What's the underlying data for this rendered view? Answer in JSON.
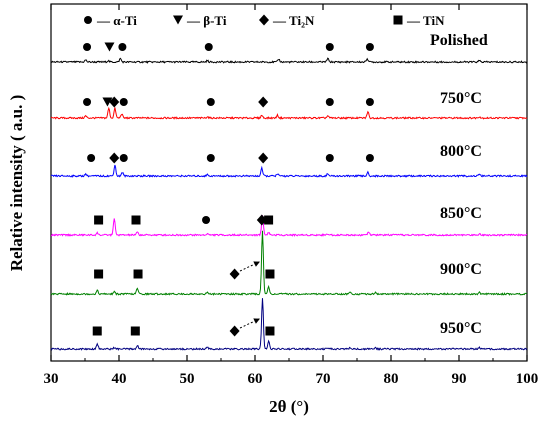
{
  "chart_data": {
    "type": "line",
    "xlabel": "2θ (°)",
    "ylabel": "Relative intensity ( a.u. )",
    "xlim": [
      30,
      100
    ],
    "x_ticks": [
      30,
      40,
      50,
      60,
      70,
      80,
      90,
      100
    ],
    "y_ticks_shown": false,
    "legend": [
      {
        "symbol": "circle",
        "label": "— α-Ti"
      },
      {
        "symbol": "triangle-down",
        "label": "— β-Ti"
      },
      {
        "symbol": "diamond",
        "label": "— Ti₂N"
      },
      {
        "symbol": "square",
        "label": "— TiN"
      }
    ],
    "series": [
      {
        "name": "Polished",
        "color": "#000000",
        "peaks": [
          {
            "x": 35.1,
            "h": 0.03
          },
          {
            "x": 38.4,
            "h": 0.02
          },
          {
            "x": 40.2,
            "h": 0.05
          },
          {
            "x": 53.0,
            "h": 0.02
          },
          {
            "x": 63.5,
            "h": 0.04
          },
          {
            "x": 70.7,
            "h": 0.05
          },
          {
            "x": 76.5,
            "h": 0.05
          },
          {
            "x": 93.0,
            "h": 0.02
          }
        ],
        "markers": [
          {
            "symbol": "circle",
            "x": 35.3
          },
          {
            "symbol": "triangle-down",
            "x": 38.6
          },
          {
            "symbol": "circle",
            "x": 40.5
          },
          {
            "symbol": "circle",
            "x": 53.2
          },
          {
            "symbol": "circle",
            "x": 71.0
          },
          {
            "symbol": "circle",
            "x": 76.9
          }
        ]
      },
      {
        "name": "750°C",
        "color": "#ff0000",
        "peaks": [
          {
            "x": 35.1,
            "h": 0.03
          },
          {
            "x": 38.5,
            "h": 0.14
          },
          {
            "x": 39.4,
            "h": 0.14
          },
          {
            "x": 40.4,
            "h": 0.06
          },
          {
            "x": 53.0,
            "h": 0.02
          },
          {
            "x": 61.0,
            "h": 0.04
          },
          {
            "x": 63.3,
            "h": 0.04
          },
          {
            "x": 70.7,
            "h": 0.03
          },
          {
            "x": 76.6,
            "h": 0.09
          },
          {
            "x": 93.0,
            "h": 0.02
          }
        ],
        "markers": [
          {
            "symbol": "circle",
            "x": 35.3
          },
          {
            "symbol": "triangle-down",
            "x": 38.3
          },
          {
            "symbol": "diamond",
            "x": 39.3
          },
          {
            "symbol": "circle",
            "x": 40.7
          },
          {
            "symbol": "circle",
            "x": 53.5
          },
          {
            "symbol": "diamond",
            "x": 61.2
          },
          {
            "symbol": "circle",
            "x": 71.0
          },
          {
            "symbol": "circle",
            "x": 76.9
          }
        ]
      },
      {
        "name": "800°C",
        "color": "#0000ff",
        "peaks": [
          {
            "x": 35.1,
            "h": 0.03
          },
          {
            "x": 39.4,
            "h": 0.16
          },
          {
            "x": 40.5,
            "h": 0.05
          },
          {
            "x": 53.0,
            "h": 0.02
          },
          {
            "x": 61.0,
            "h": 0.11
          },
          {
            "x": 63.3,
            "h": 0.03
          },
          {
            "x": 70.7,
            "h": 0.03
          },
          {
            "x": 76.6,
            "h": 0.05
          },
          {
            "x": 93.0,
            "h": 0.02
          }
        ],
        "markers": [
          {
            "symbol": "circle",
            "x": 35.9
          },
          {
            "symbol": "diamond",
            "x": 39.3
          },
          {
            "symbol": "circle",
            "x": 40.7
          },
          {
            "symbol": "circle",
            "x": 53.5
          },
          {
            "symbol": "diamond",
            "x": 61.2
          },
          {
            "symbol": "circle",
            "x": 71.0
          },
          {
            "symbol": "circle",
            "x": 76.9
          }
        ]
      },
      {
        "name": "850°C",
        "color": "#ff00ff",
        "peaks": [
          {
            "x": 36.8,
            "h": 0.03
          },
          {
            "x": 39.3,
            "h": 0.24
          },
          {
            "x": 42.7,
            "h": 0.04
          },
          {
            "x": 53.0,
            "h": 0.02
          },
          {
            "x": 61.1,
            "h": 0.28
          },
          {
            "x": 62.0,
            "h": 0.04
          },
          {
            "x": 70.7,
            "h": 0.02
          },
          {
            "x": 76.7,
            "h": 0.04
          },
          {
            "x": 93.0,
            "h": 0.02
          }
        ],
        "markers": [
          {
            "symbol": "square",
            "x": 37.0
          },
          {
            "symbol": "square",
            "x": 42.5
          },
          {
            "symbol": "circle",
            "x": 52.8
          },
          {
            "symbol": "diamond",
            "x": 61.0
          },
          {
            "symbol": "square",
            "x": 62.0
          }
        ]
      },
      {
        "name": "900°C",
        "color": "#008000",
        "peaks": [
          {
            "x": 36.8,
            "h": 0.05
          },
          {
            "x": 39.3,
            "h": 0.03
          },
          {
            "x": 42.7,
            "h": 0.08
          },
          {
            "x": 53.0,
            "h": 0.02
          },
          {
            "x": 61.1,
            "h": 0.9
          },
          {
            "x": 62.0,
            "h": 0.1
          },
          {
            "x": 74.0,
            "h": 0.02
          },
          {
            "x": 77.7,
            "h": 0.02
          },
          {
            "x": 93.0,
            "h": 0.02
          }
        ],
        "markers": [
          {
            "symbol": "square",
            "x": 37.0
          },
          {
            "symbol": "square",
            "x": 42.8
          },
          {
            "symbol": "diamond",
            "x": 57.0
          },
          {
            "symbol": "square",
            "x": 62.2
          }
        ]
      },
      {
        "name": "950°C",
        "color": "#000080",
        "peaks": [
          {
            "x": 36.8,
            "h": 0.08
          },
          {
            "x": 39.3,
            "h": 0.02
          },
          {
            "x": 42.7,
            "h": 0.05
          },
          {
            "x": 53.0,
            "h": 0.02
          },
          {
            "x": 61.1,
            "h": 0.72
          },
          {
            "x": 62.0,
            "h": 0.12
          },
          {
            "x": 74.0,
            "h": 0.02
          },
          {
            "x": 77.7,
            "h": 0.02
          },
          {
            "x": 93.0,
            "h": 0.02
          }
        ],
        "markers": [
          {
            "symbol": "square",
            "x": 36.8
          },
          {
            "symbol": "square",
            "x": 42.4
          },
          {
            "symbol": "diamond",
            "x": 57.0
          },
          {
            "symbol": "square",
            "x": 62.2
          }
        ]
      }
    ]
  }
}
